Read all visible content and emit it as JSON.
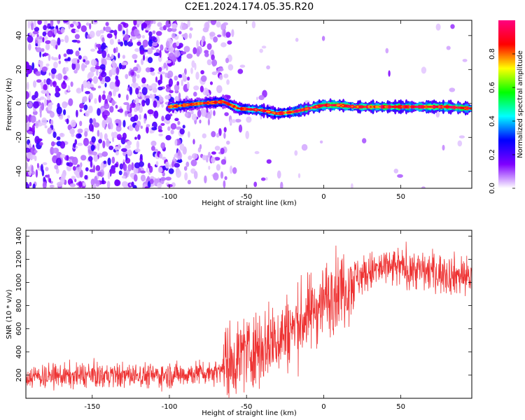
{
  "title": "C2E1.2024.174.05.35.R20",
  "chart_data": [
    {
      "type": "heatmap",
      "xlabel": "Height of straight line (km)",
      "ylabel": "Frequency (Hz)",
      "xlim": [
        -193,
        96
      ],
      "ylim": [
        -50,
        49
      ],
      "xticks": [
        -150,
        -100,
        -50,
        0,
        50
      ],
      "yticks": [
        -40,
        -20,
        0,
        20,
        40
      ],
      "colorbar": {
        "label": "Normalized spectral amplitude",
        "range": [
          0.0,
          1.0
        ],
        "ticks": [
          "0.0",
          "0.2",
          "0.4",
          "0.6",
          "0.8"
        ],
        "colormap": [
          "#ffffff",
          "#7f00ff",
          "#0000ff",
          "#00ffff",
          "#00ff00",
          "#ffff00",
          "#ff0000",
          "#ff0080"
        ]
      },
      "ridge": {
        "description_points": [
          {
            "x": -100,
            "y": -2
          },
          {
            "x": -80,
            "y": 0
          },
          {
            "x": -65,
            "y": 1
          },
          {
            "x": -55,
            "y": -3
          },
          {
            "x": -40,
            "y": -4
          },
          {
            "x": -30,
            "y": -6
          },
          {
            "x": -20,
            "y": -5
          },
          {
            "x": -10,
            "y": -3
          },
          {
            "x": 0,
            "y": -1
          },
          {
            "x": 10,
            "y": -1
          },
          {
            "x": 20,
            "y": -2
          },
          {
            "x": 50,
            "y": -2
          },
          {
            "x": 80,
            "y": -2
          },
          {
            "x": 96,
            "y": -3
          }
        ]
      },
      "grid": false
    },
    {
      "type": "line",
      "xlabel": "Height of straight line (km)",
      "ylabel": "SNR (10 * v/v)",
      "xlim": [
        -193,
        96
      ],
      "ylim": [
        0,
        1450
      ],
      "xticks": [
        -150,
        -100,
        -50,
        0,
        50
      ],
      "yticks": [
        200,
        400,
        600,
        800,
        1000,
        1200,
        1400
      ],
      "series": [
        {
          "color": "#ee3333",
          "trend": [
            {
              "x": -193,
              "y": 190
            },
            {
              "x": -100,
              "y": 200
            },
            {
              "x": -70,
              "y": 230
            },
            {
              "x": -60,
              "y": 330
            },
            {
              "x": -50,
              "y": 400
            },
            {
              "x": -40,
              "y": 450
            },
            {
              "x": -30,
              "y": 520
            },
            {
              "x": -20,
              "y": 600
            },
            {
              "x": -10,
              "y": 720
            },
            {
              "x": 0,
              "y": 850
            },
            {
              "x": 10,
              "y": 940
            },
            {
              "x": 20,
              "y": 1040
            },
            {
              "x": 35,
              "y": 1110
            },
            {
              "x": 50,
              "y": 1130
            },
            {
              "x": 70,
              "y": 1090
            },
            {
              "x": 96,
              "y": 1050
            }
          ]
        }
      ],
      "grid": false
    }
  ]
}
